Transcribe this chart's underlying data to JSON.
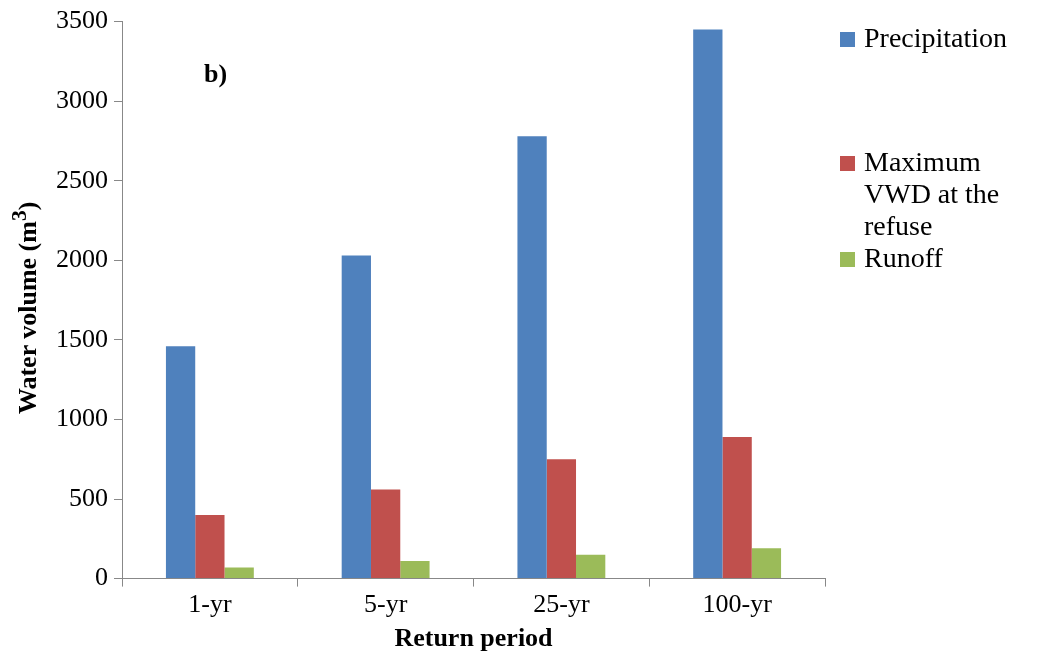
{
  "chart_data": {
    "type": "bar",
    "xlabel": "Return period",
    "ylabel": "Water volume (m$^{3}$)",
    "annotations": [
      "b)"
    ],
    "categories": [
      "1-yr",
      "5-yr",
      "25-yr",
      "100-yr"
    ],
    "series": [
      {
        "name": "Precipitation",
        "color": "#4f81bd",
        "values": [
          1460,
          2030,
          2780,
          3450
        ]
      },
      {
        "name": "Maximum VWD at the refuse",
        "color": "#c0504d",
        "values": [
          400,
          560,
          750,
          890
        ]
      },
      {
        "name": "Runoff",
        "color": "#9bbb59",
        "values": [
          70,
          110,
          150,
          190
        ]
      }
    ],
    "ylim": [
      0,
      3500
    ],
    "yticks": [
      0,
      500,
      1000,
      1500,
      2000,
      2500,
      3000,
      3500
    ],
    "grid": false,
    "legend": "right"
  }
}
